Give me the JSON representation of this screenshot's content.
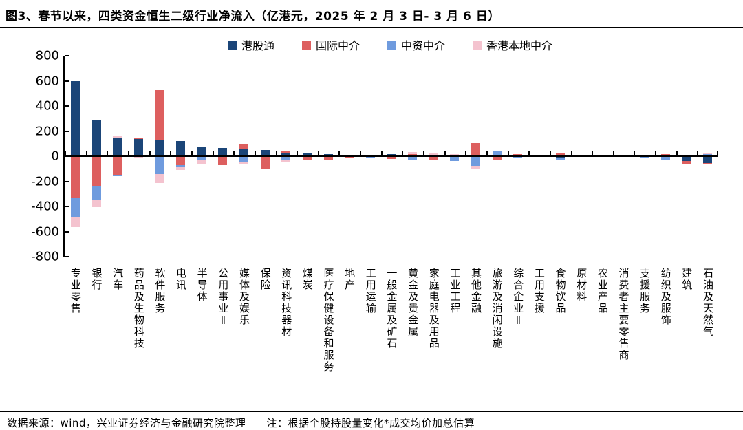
{
  "header": {
    "title": "图3、春节以来，四类资金恒生二级行业净流入（亿港元，2025 年 2 月 3 日- 3 月 6 日）"
  },
  "footer": {
    "source": "数据来源：wind，兴业证券经济与金融研究院整理",
    "note": "注：根据个股持股量变化*成交均价加总估算"
  },
  "chart_data": {
    "type": "bar",
    "stacked": true,
    "title": "图3、春节以来，四类资金恒生二级行业净流入（亿港元，2025 年 2 月 3 日- 3 月 6 日）",
    "unit": "亿港元",
    "legend_position": "top",
    "grid": false,
    "ylim": [
      -800,
      800
    ],
    "ytick_interval": 200,
    "yticks": [
      800,
      600,
      400,
      200,
      0,
      -200,
      -400,
      -600,
      -800
    ],
    "categories": [
      "专业零售",
      "银行",
      "汽车",
      "药品及生物科技",
      "软件服务",
      "电讯",
      "半导体",
      "公用事业Ⅱ",
      "媒体及娱乐",
      "保险",
      "资讯科技器材",
      "煤炭",
      "医疗保健设备和服务",
      "地产",
      "工用运输",
      "一般金属及矿石",
      "黄金及贵金属",
      "家庭电器及用品",
      "工业工程",
      "其他金融",
      "旅游及消闲设施",
      "综合企业Ⅱ",
      "工用支援",
      "食物饮品",
      "原材料",
      "农业产品",
      "消费者主要零售商",
      "支援服务",
      "纺织及服饰",
      "建筑",
      "石油及天然气"
    ],
    "series": [
      {
        "name": "港股通",
        "color": "#1b4578",
        "values": [
          595,
          285,
          150,
          140,
          130,
          118,
          77,
          65,
          55,
          50,
          25,
          25,
          15,
          12,
          10,
          15,
          8,
          8,
          0,
          5,
          0,
          0,
          0,
          -10,
          -5,
          -3,
          0,
          0,
          0,
          -40,
          -55
        ]
      },
      {
        "name": "国际中介",
        "color": "#dd5f5f",
        "values": [
          -335,
          -240,
          -150,
          5,
          395,
          -70,
          0,
          -70,
          40,
          -100,
          20,
          -35,
          -25,
          -10,
          -8,
          -22,
          10,
          -35,
          0,
          100,
          -30,
          15,
          0,
          25,
          0,
          0,
          -3,
          0,
          15,
          -20,
          -10
        ]
      },
      {
        "name": "中资中介",
        "color": "#6f9bde",
        "values": [
          -145,
          -105,
          -10,
          0,
          -145,
          -18,
          -35,
          0,
          -50,
          0,
          -35,
          0,
          0,
          0,
          -4,
          0,
          -30,
          0,
          -40,
          -80,
          40,
          -18,
          -8,
          -20,
          0,
          0,
          0,
          -10,
          -35,
          0,
          15
        ]
      },
      {
        "name": "香港本地中介",
        "color": "#f4c3cf",
        "values": [
          -85,
          -60,
          8,
          -12,
          -70,
          -20,
          -25,
          0,
          -15,
          0,
          -15,
          0,
          0,
          0,
          0,
          0,
          15,
          22,
          18,
          -25,
          -5,
          0,
          0,
          0,
          0,
          0,
          0,
          0,
          0,
          -8,
          10
        ]
      }
    ]
  }
}
